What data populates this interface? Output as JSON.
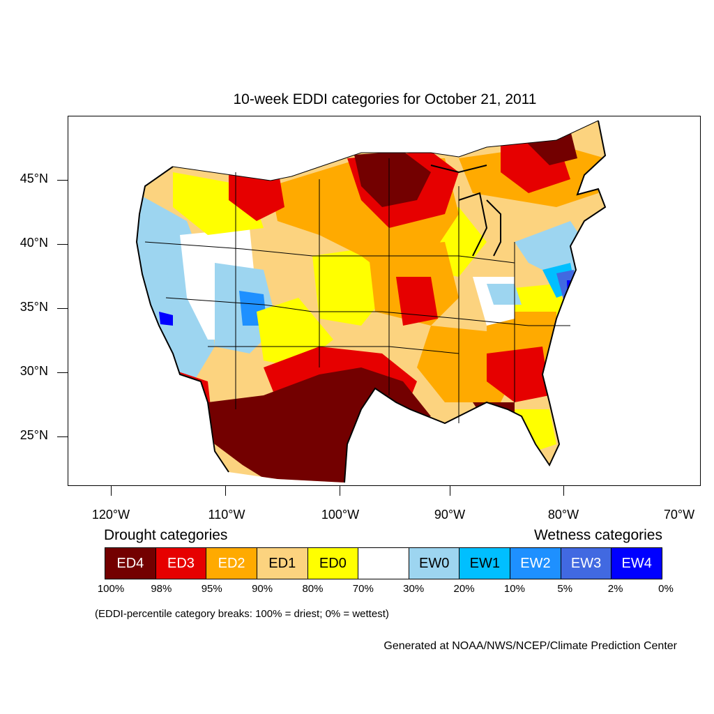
{
  "title": "10-week EDDI categories for October 21, 2011",
  "lat_labels": [
    "45°N",
    "40°N",
    "35°N",
    "30°N",
    "25°N"
  ],
  "lon_labels": [
    "120°W",
    "110°W",
    "100°W",
    "90°W",
    "80°W",
    "70°W"
  ],
  "legend": {
    "drought_heading": "Drought categories",
    "wetness_heading": "Wetness categories",
    "categories": [
      {
        "label": "ED4",
        "color": "#730000",
        "text_color": "#ffffff"
      },
      {
        "label": "ED3",
        "color": "#e60000",
        "text_color": "#ffffff"
      },
      {
        "label": "ED2",
        "color": "#ffaa00",
        "text_color": "#ffffff"
      },
      {
        "label": "ED1",
        "color": "#fcd37f",
        "text_color": "#000000"
      },
      {
        "label": "ED0",
        "color": "#ffff00",
        "text_color": "#000000"
      },
      {
        "label": "",
        "color": "#ffffff",
        "text_color": "#000000"
      },
      {
        "label": "EW0",
        "color": "#9dd5f0",
        "text_color": "#000000"
      },
      {
        "label": "EW1",
        "color": "#00bfff",
        "text_color": "#000000"
      },
      {
        "label": "EW2",
        "color": "#1e90ff",
        "text_color": "#ffffff"
      },
      {
        "label": "EW3",
        "color": "#4169e1",
        "text_color": "#ffffff"
      },
      {
        "label": "EW4",
        "color": "#0000ff",
        "text_color": "#ffffff"
      }
    ],
    "breaks": [
      "100%",
      "98%",
      "95%",
      "90%",
      "80%",
      "70%",
      "30%",
      "20%",
      "10%",
      "5%",
      "2%",
      "0%"
    ]
  },
  "note": "(EDDI-percentile category breaks: 100% = driest; 0% = wettest)",
  "credit": "Generated at NOAA/NWS/NCEP/Climate Prediction Center"
}
